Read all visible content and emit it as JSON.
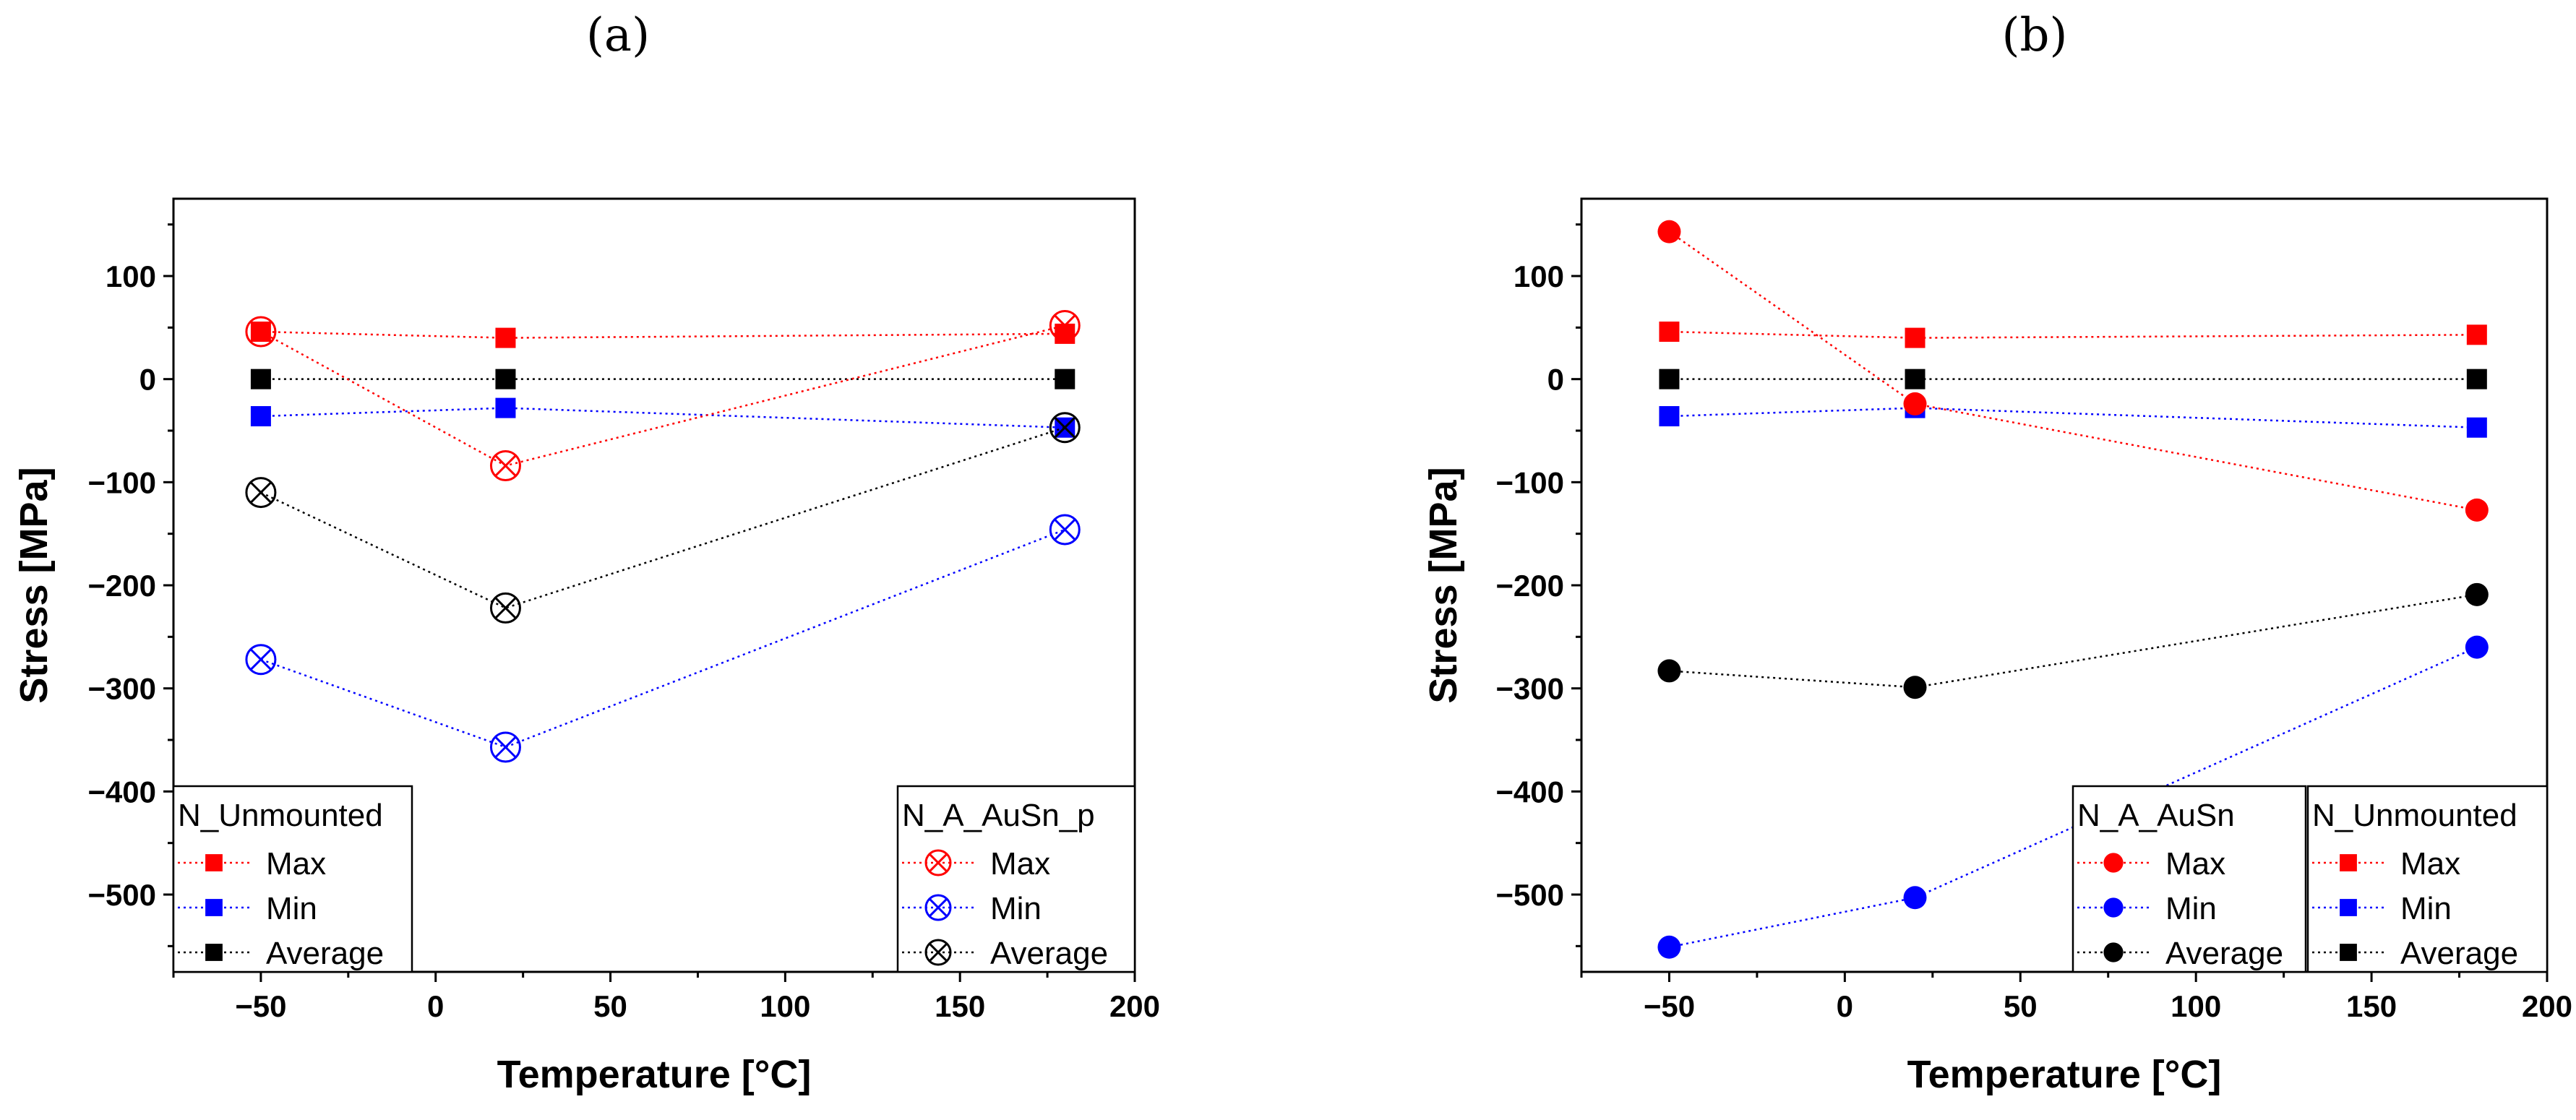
{
  "chart_data": [
    {
      "type": "scatter",
      "panel_label": "(a)",
      "xlabel": "Temperature [°C]",
      "ylabel": "Stress [MPa]",
      "xlim": [
        -75,
        200
      ],
      "ylim": [
        -575,
        175
      ],
      "x_ticks": [
        -50,
        0,
        50,
        100,
        150,
        200
      ],
      "x_tick_labels": [
        "−50",
        "0",
        "50",
        "100",
        "150",
        "200"
      ],
      "y_ticks": [
        100,
        0,
        -100,
        -200,
        -300,
        -400,
        -500
      ],
      "y_tick_labels": [
        "100",
        "0",
        "−100",
        "−200",
        "−300",
        "−400",
        "−500"
      ],
      "series": [
        {
          "name": "Max",
          "group": "N_Unmounted",
          "marker": "square",
          "color": "#ff0000",
          "x": [
            -50,
            20,
            180
          ],
          "values": [
            46,
            40,
            44
          ]
        },
        {
          "name": "Min",
          "group": "N_Unmounted",
          "marker": "square",
          "color": "#0000ff",
          "x": [
            -50,
            20,
            180
          ],
          "values": [
            -36,
            -28,
            -47
          ]
        },
        {
          "name": "Average",
          "group": "N_Unmounted",
          "marker": "square",
          "color": "#000000",
          "x": [
            -50,
            20,
            180
          ],
          "values": [
            0,
            0,
            0
          ]
        },
        {
          "name": "Max",
          "group": "N_A_AuSn_p",
          "marker": "circle-x",
          "color": "#ff0000",
          "x": [
            -50,
            20,
            180
          ],
          "values": [
            46,
            -84,
            52
          ]
        },
        {
          "name": "Min",
          "group": "N_A_AuSn_p",
          "marker": "circle-x",
          "color": "#0000ff",
          "x": [
            -50,
            20,
            180
          ],
          "values": [
            -272,
            -357,
            -146
          ]
        },
        {
          "name": "Average",
          "group": "N_A_AuSn_p",
          "marker": "circle-x",
          "color": "#000000",
          "x": [
            -50,
            20,
            180
          ],
          "values": [
            -110,
            -222,
            -47
          ]
        }
      ],
      "legends": [
        {
          "title": "N_Unmounted",
          "marker": "square",
          "position": "bottom-left",
          "entries": [
            "Max",
            "Min",
            "Average"
          ],
          "colors": [
            "#ff0000",
            "#0000ff",
            "#000000"
          ]
        },
        {
          "title": "N_A_AuSn_p",
          "marker": "circle-x",
          "position": "bottom-right",
          "entries": [
            "Max",
            "Min",
            "Average"
          ],
          "colors": [
            "#ff0000",
            "#0000ff",
            "#000000"
          ]
        }
      ]
    },
    {
      "type": "scatter",
      "panel_label": "(b)",
      "xlabel": "Temperature [°C]",
      "ylabel": "Stress [MPa]",
      "xlim": [
        -75,
        200
      ],
      "ylim": [
        -575,
        175
      ],
      "x_ticks": [
        -50,
        0,
        50,
        100,
        150,
        200
      ],
      "x_tick_labels": [
        "−50",
        "0",
        "50",
        "100",
        "150",
        "200"
      ],
      "y_ticks": [
        100,
        0,
        -100,
        -200,
        -300,
        -400,
        -500
      ],
      "y_tick_labels": [
        "100",
        "0",
        "−100",
        "−200",
        "−300",
        "−400",
        "−500"
      ],
      "series": [
        {
          "name": "Max",
          "group": "N_Unmounted",
          "marker": "square",
          "color": "#ff0000",
          "x": [
            -50,
            20,
            180
          ],
          "values": [
            46,
            40,
            43
          ]
        },
        {
          "name": "Min",
          "group": "N_Unmounted",
          "marker": "square",
          "color": "#0000ff",
          "x": [
            -50,
            20,
            180
          ],
          "values": [
            -36,
            -28,
            -47
          ]
        },
        {
          "name": "Average",
          "group": "N_Unmounted",
          "marker": "square",
          "color": "#000000",
          "x": [
            -50,
            20,
            180
          ],
          "values": [
            0,
            0,
            0
          ]
        },
        {
          "name": "Max",
          "group": "N_A_AuSn",
          "marker": "circle",
          "color": "#ff0000",
          "x": [
            -50,
            20,
            180
          ],
          "values": [
            143,
            -24,
            -127
          ]
        },
        {
          "name": "Min",
          "group": "N_A_AuSn",
          "marker": "circle",
          "color": "#0000ff",
          "x": [
            -50,
            20,
            180
          ],
          "values": [
            -551,
            -503,
            -260
          ]
        },
        {
          "name": "Average",
          "group": "N_A_AuSn",
          "marker": "circle",
          "color": "#000000",
          "x": [
            -50,
            20,
            180
          ],
          "values": [
            -283,
            -299,
            -209
          ]
        }
      ],
      "legends": [
        {
          "title": "N_A_AuSn",
          "marker": "circle",
          "position": "bottom-center",
          "entries": [
            "Max",
            "Min",
            "Average"
          ],
          "colors": [
            "#ff0000",
            "#0000ff",
            "#000000"
          ]
        },
        {
          "title": "N_Unmounted",
          "marker": "square",
          "position": "bottom-right",
          "entries": [
            "Max",
            "Min",
            "Average"
          ],
          "colors": [
            "#ff0000",
            "#0000ff",
            "#000000"
          ]
        }
      ]
    }
  ]
}
